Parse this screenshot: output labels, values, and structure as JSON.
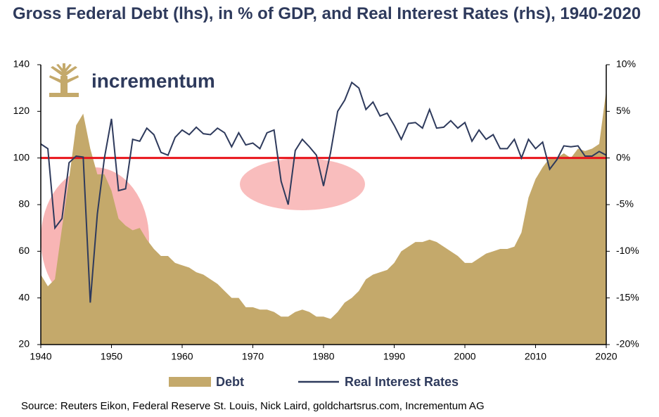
{
  "chart_data": {
    "type": "area-line",
    "title": "Gross Federal Debt (lhs), in % of GDP, and Real Interest Rates (rhs), 1940-2020",
    "logo_text": "incrementum",
    "source": "Source: Reuters Eikon, Federal Reserve St. Louis, Nick Laird, goldchartsrus.com, Incrementum AG",
    "x": [
      1940,
      1941,
      1942,
      1943,
      1944,
      1945,
      1946,
      1947,
      1948,
      1949,
      1950,
      1951,
      1952,
      1953,
      1954,
      1955,
      1956,
      1957,
      1958,
      1959,
      1960,
      1961,
      1962,
      1963,
      1964,
      1965,
      1966,
      1967,
      1968,
      1969,
      1970,
      1971,
      1972,
      1973,
      1974,
      1975,
      1976,
      1977,
      1978,
      1979,
      1980,
      1981,
      1982,
      1983,
      1984,
      1985,
      1986,
      1987,
      1988,
      1989,
      1990,
      1991,
      1992,
      1993,
      1994,
      1995,
      1996,
      1997,
      1998,
      1999,
      2000,
      2001,
      2002,
      2003,
      2004,
      2005,
      2006,
      2007,
      2008,
      2009,
      2010,
      2011,
      2012,
      2013,
      2014,
      2015,
      2016,
      2017,
      2018,
      2019,
      2020
    ],
    "series": [
      {
        "name": "Debt",
        "color": "#c4a96b",
        "kind": "area",
        "axis": "y",
        "values": [
          50,
          45,
          48,
          70,
          91,
          114,
          119,
          104,
          93,
          93,
          86,
          74,
          71,
          69,
          70,
          65,
          61,
          58,
          58,
          55,
          54,
          53,
          51,
          50,
          48,
          46,
          43,
          40,
          40,
          36,
          36,
          35,
          35,
          34,
          32,
          32,
          34,
          35,
          34,
          32,
          32,
          31,
          34,
          38,
          40,
          43,
          48,
          50,
          51,
          52,
          55,
          60,
          62,
          64,
          64,
          65,
          64,
          62,
          60,
          58,
          55,
          55,
          57,
          59,
          60,
          61,
          61,
          62,
          68,
          83,
          91,
          96,
          100,
          100,
          102,
          100,
          104,
          103,
          104,
          106,
          129
        ]
      },
      {
        "name": "Real Interest Rates",
        "color": "#2e3a5c",
        "kind": "line",
        "axis": "y2",
        "values": [
          1.5,
          1.0,
          -7.5,
          -6.5,
          -0.5,
          0.2,
          0.1,
          -15.5,
          -6,
          0,
          4.2,
          -3.5,
          -3.3,
          2,
          1.8,
          3.2,
          2.5,
          0.6,
          0.3,
          2.2,
          3,
          2.5,
          3.3,
          2.6,
          2.5,
          3.2,
          2.7,
          1.2,
          2.7,
          1.4,
          1.6,
          1.0,
          2.7,
          3.0,
          -2.5,
          -5.0,
          0.8,
          2.0,
          1.2,
          0.3,
          -3.0,
          0.6,
          5.0,
          6.2,
          8.1,
          7.5,
          5.2,
          6.0,
          4.5,
          4.8,
          3.5,
          2.0,
          3.7,
          3.8,
          3.2,
          5.2,
          3.2,
          3.3,
          4.0,
          3.2,
          3.8,
          1.8,
          3.0,
          2.0,
          2.5,
          1.0,
          1.0,
          2.0,
          0,
          2.0,
          1.0,
          1.7,
          -1.2,
          -0.2,
          1.3,
          1.2,
          1.3,
          0.2,
          0.2,
          0.7,
          0.3
        ]
      }
    ],
    "reference_line": {
      "value": 0,
      "axis": "y2",
      "color": "#e8141b"
    },
    "xlim": [
      1940,
      2020
    ],
    "xticks": [
      1940,
      1950,
      1960,
      1970,
      1980,
      1990,
      2000,
      2010,
      2020
    ],
    "ylim": [
      20,
      140
    ],
    "yticks": [
      20,
      40,
      60,
      80,
      100,
      120,
      140
    ],
    "y2lim": [
      -20,
      10
    ],
    "y2ticks": [
      {
        "value": -20,
        "label": "-20%"
      },
      {
        "value": -15,
        "label": "-15%"
      },
      {
        "value": -10,
        "label": "-10%"
      },
      {
        "value": -5,
        "label": "-5%"
      },
      {
        "value": 0,
        "label": "0%"
      },
      {
        "value": 5,
        "label": "5%"
      },
      {
        "value": 10,
        "label": "10%"
      }
    ],
    "legend": "bottom"
  }
}
